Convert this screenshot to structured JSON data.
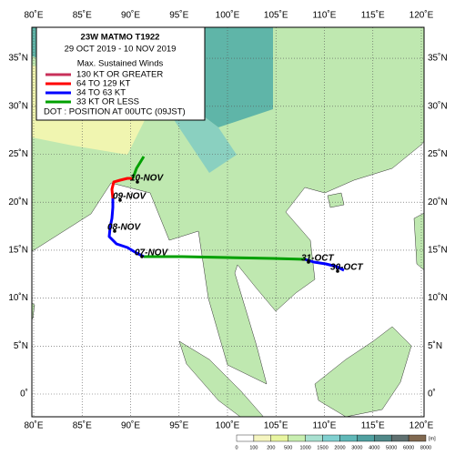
{
  "header": {
    "title": "23W  MATMO  T1922",
    "period": "29 OCT 2019 - 10 NOV 2019"
  },
  "legend": {
    "heading": "Max. Sustained Winds",
    "items": [
      {
        "label": "130 KT OR GREATER",
        "color": "#c8305a"
      },
      {
        "label": "64 TO 129 KT",
        "color": "#ff0000"
      },
      {
        "label": "34 TO 63 KT",
        "color": "#0000ff"
      },
      {
        "label": "33 KT OR LESS",
        "color": "#00a000"
      }
    ],
    "note": "DOT : POSITION AT 00UTC (09JST)"
  },
  "axes": {
    "longitudes": [
      "80˚E",
      "85˚E",
      "90˚E",
      "95˚E",
      "100˚E",
      "105˚E",
      "110˚E",
      "115˚E",
      "120˚E"
    ],
    "latitudes": [
      "0˚",
      "5˚N",
      "10˚N",
      "15˚N",
      "20˚N",
      "25˚N",
      "30˚N",
      "35˚N"
    ]
  },
  "track_labels": [
    "30-OCT",
    "31-OCT",
    "07-NOV",
    "08-NOV",
    "09-NOV",
    "10-NOV"
  ],
  "colorbar": {
    "labels": [
      "0",
      "100",
      "200",
      "500",
      "1000",
      "1500",
      "2000",
      "3000",
      "4000",
      "5000",
      "6000",
      "8000"
    ],
    "unit": "[m]"
  }
}
